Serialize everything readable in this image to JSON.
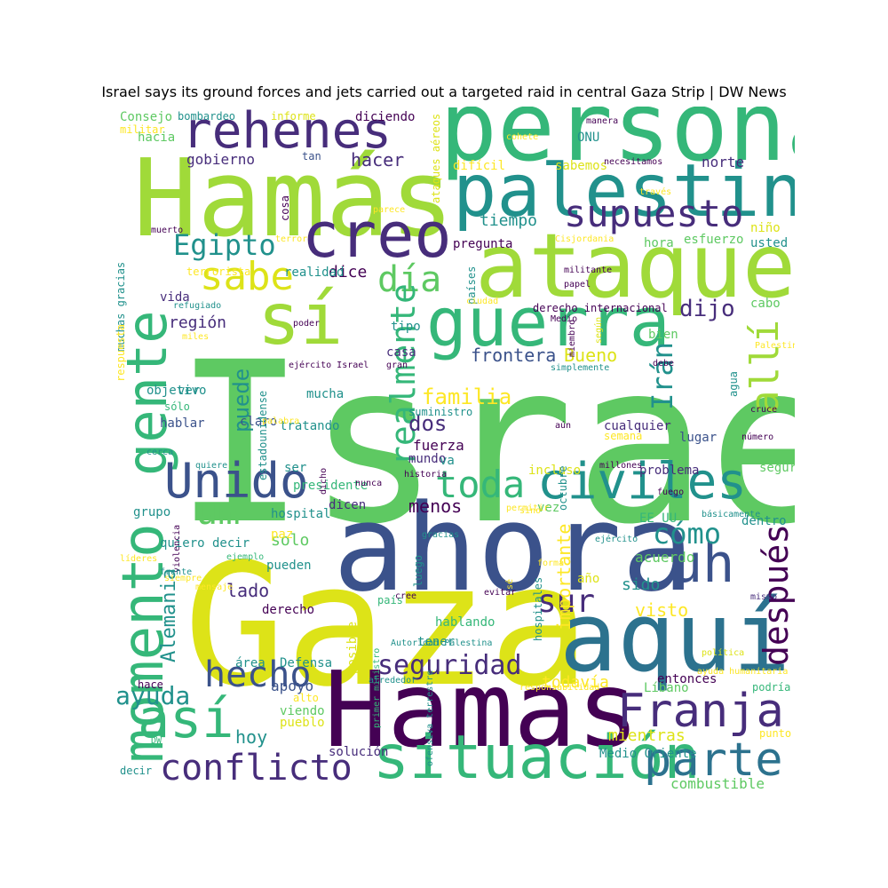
{
  "title": "Israel says its ground forces and jets carried out a targeted raid in central Gaza Strip | DW News",
  "palette": [
    "#440154",
    "#3b528b",
    "#21918c",
    "#5ec962",
    "#a0da39",
    "#fde725",
    "#2c728e",
    "#35b779",
    "#472d7b",
    "#dde318"
  ],
  "words": [
    {
      "text": "Israel"
    },
    {
      "text": "Gaza"
    },
    {
      "text": "ahora"
    },
    {
      "text": "Hamas"
    },
    {
      "text": "Hamás"
    },
    {
      "text": "persona"
    },
    {
      "text": "ataque"
    },
    {
      "text": "palestino"
    },
    {
      "text": "aquí"
    },
    {
      "text": "situación"
    },
    {
      "text": "momento"
    },
    {
      "text": "gente"
    },
    {
      "text": "guerra"
    },
    {
      "text": "creo"
    },
    {
      "text": "civiles"
    },
    {
      "text": "rehenes"
    },
    {
      "text": "sí"
    },
    {
      "text": "Franja"
    },
    {
      "text": "parte"
    },
    {
      "text": "Unido"
    },
    {
      "text": "así"
    },
    {
      "text": "conflicto"
    },
    {
      "text": "allí"
    },
    {
      "text": "uh"
    },
    {
      "text": "supuesto"
    },
    {
      "text": "sabe"
    },
    {
      "text": "día"
    },
    {
      "text": "hecho"
    },
    {
      "text": "realmente"
    },
    {
      "text": "toda"
    },
    {
      "text": "um"
    },
    {
      "text": "después"
    },
    {
      "text": "Egipto"
    },
    {
      "text": "seguridad"
    },
    {
      "text": "sur"
    },
    {
      "text": "cómo"
    },
    {
      "text": "Irán"
    },
    {
      "text": "dijo"
    },
    {
      "text": "ayuda"
    },
    {
      "text": "puede"
    },
    {
      "text": "familia"
    },
    {
      "text": "Alemania"
    },
    {
      "text": "hacer"
    },
    {
      "text": "importante"
    },
    {
      "text": "dos"
    },
    {
      "text": "frontera"
    },
    {
      "text": "Bueno"
    },
    {
      "text": "tiempo"
    },
    {
      "text": "región"
    },
    {
      "text": "dice"
    },
    {
      "text": "gobierno"
    },
    {
      "text": "norte"
    },
    {
      "text": "lado"
    },
    {
      "text": "sido"
    },
    {
      "text": "todavía"
    },
    {
      "text": "mientras"
    },
    {
      "text": "visto"
    },
    {
      "text": "hoy"
    },
    {
      "text": "menos"
    },
    {
      "text": "solo"
    },
    {
      "text": "apoyo"
    },
    {
      "text": "combustible"
    },
    {
      "text": "acuerdo"
    },
    {
      "text": "entonces"
    },
    {
      "text": "posible"
    },
    {
      "text": "fuerza"
    },
    {
      "text": "niño"
    },
    {
      "text": "esfuerzo"
    },
    {
      "text": "usted"
    },
    {
      "text": "hora"
    },
    {
      "text": "pregunta"
    },
    {
      "text": "bien"
    },
    {
      "text": "cabo"
    },
    {
      "text": "vida"
    },
    {
      "text": "tipo"
    },
    {
      "text": "casa"
    },
    {
      "text": "mucha"
    },
    {
      "text": "cualquier"
    },
    {
      "text": "semana"
    },
    {
      "text": "lugar"
    },
    {
      "text": "seguro"
    },
    {
      "text": "dentro"
    },
    {
      "text": "presidente"
    },
    {
      "text": "hospital"
    },
    {
      "text": "dicen"
    },
    {
      "text": "quiero decir"
    },
    {
      "text": "paz"
    },
    {
      "text": "pueden"
    },
    {
      "text": "derecho"
    },
    {
      "text": "país"
    },
    {
      "text": "hablando"
    },
    {
      "text": "tener"
    },
    {
      "text": "año"
    },
    {
      "text": "área"
    },
    {
      "text": "Defensa"
    },
    {
      "text": "hace"
    },
    {
      "text": "alto"
    },
    {
      "text": "viendo"
    },
    {
      "text": "pueblo"
    },
    {
      "text": "solución"
    },
    {
      "text": "Medio Oriente"
    },
    {
      "text": "decir"
    },
    {
      "text": "Líbano"
    },
    {
      "text": "podría"
    },
    {
      "text": "punto"
    },
    {
      "text": "EE UU"
    },
    {
      "text": "problema"
    },
    {
      "text": "incluso"
    },
    {
      "text": "vez"
    },
    {
      "text": "mundo"
    },
    {
      "text": "va"
    },
    {
      "text": "ser"
    },
    {
      "text": "octubre"
    },
    {
      "text": "suministro"
    },
    {
      "text": "tratando"
    },
    {
      "text": "claro"
    },
    {
      "text": "hablar"
    },
    {
      "text": "sólo"
    },
    {
      "text": "objetivo"
    },
    {
      "text": "ver"
    },
    {
      "text": "grupo"
    },
    {
      "text": "hacia"
    },
    {
      "text": "Consejo"
    },
    {
      "text": "militar"
    },
    {
      "text": "bombardeo"
    },
    {
      "text": "informe"
    },
    {
      "text": "diciendo"
    },
    {
      "text": "tan"
    },
    {
      "text": "difícil"
    },
    {
      "text": "sabemos"
    },
    {
      "text": "ONU"
    },
    {
      "text": "muchas gracias"
    },
    {
      "text": "cosa"
    },
    {
      "text": "ataques aéreos"
    },
    {
      "text": "terrorista"
    },
    {
      "text": "realidad"
    },
    {
      "text": "países"
    },
    {
      "text": "derecho internacional"
    },
    {
      "text": "respuesta"
    },
    {
      "text": "estadounidense"
    },
    {
      "text": "luego"
    },
    {
      "text": "hospitales"
    },
    {
      "text": "agua"
    },
    {
      "text": "manera"
    },
    {
      "text": "necesitamos"
    },
    {
      "text": "cohete"
    },
    {
      "text": "través"
    },
    {
      "text": "parece"
    },
    {
      "text": "Cisjordania"
    },
    {
      "text": "militante"
    },
    {
      "text": "papel"
    },
    {
      "text": "ciudad"
    },
    {
      "text": "Medio"
    },
    {
      "text": "miembro"
    },
    {
      "text": "según"
    },
    {
      "text": "muerto"
    },
    {
      "text": "terror"
    },
    {
      "text": "refugiado"
    },
    {
      "text": "poder"
    },
    {
      "text": "miles"
    },
    {
      "text": "ejército Israel"
    },
    {
      "text": "gran"
    },
    {
      "text": "simplemente"
    },
    {
      "text": "debe"
    },
    {
      "text": "Palestina"
    },
    {
      "text": "cruce"
    },
    {
      "text": "número"
    },
    {
      "text": "aún"
    },
    {
      "text": "millones"
    },
    {
      "text": "historia"
    },
    {
      "text": "nunca"
    },
    {
      "text": "dicho"
    },
    {
      "text": "quiere"
    },
    {
      "text": "cerca"
    },
    {
      "text": "palabra"
    },
    {
      "text": "fuego"
    },
    {
      "text": "básicamente"
    },
    {
      "text": "ejército"
    },
    {
      "text": "permitir"
    },
    {
      "text": "evitar"
    },
    {
      "text": "forma"
    },
    {
      "text": "gracias"
    },
    {
      "text": "violencia"
    },
    {
      "text": "ejemplo"
    },
    {
      "text": "líderes"
    },
    {
      "text": "siempre"
    },
    {
      "text": "mensaje"
    },
    {
      "text": "mismo"
    },
    {
      "text": "cree"
    },
    {
      "text": "sino"
    },
    {
      "text": "sé"
    },
    {
      "text": "primer ministro"
    },
    {
      "text": "Autoridad Palestina"
    },
    {
      "text": "responsabilidad"
    },
    {
      "text": "alrededor"
    },
    {
      "text": "política"
    },
    {
      "text": "ayuda humanitaria"
    },
    {
      "text": "ofensiva terrestre"
    },
    {
      "text": "frente"
    },
    {
      "text": "DW"
    }
  ]
}
